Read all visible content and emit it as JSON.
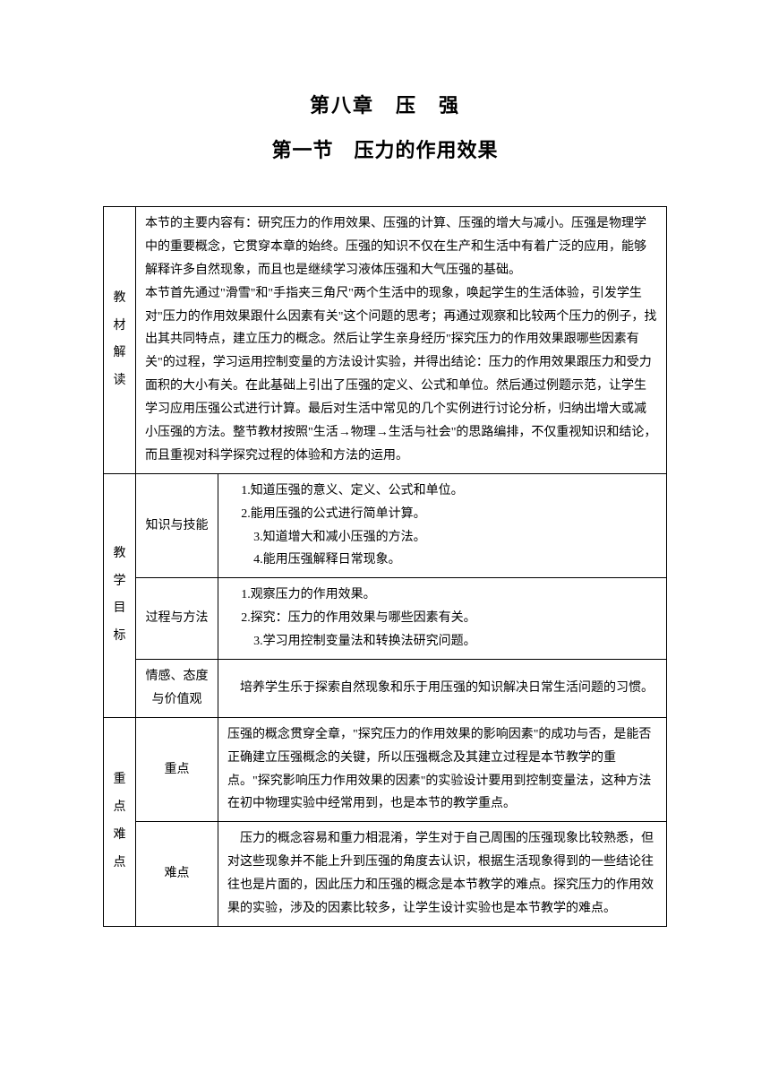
{
  "chapter_title": "第八章　压　强",
  "section_title": "第一节　压力的作用效果",
  "rows": {
    "material": {
      "label": "教\n材\n解\n读",
      "content": "本节的主要内容有：研究压力的作用效果、压强的计算、压强的增大与减小。压强是物理学中的重要概念，它贯穿本章的始终。压强的知识不仅在生产和生活中有着广泛的应用，能够解释许多自然现象，而且也是继续学习液体压强和大气压强的基础。\n本节首先通过\"滑雪\"和\"手指夹三角尺\"两个生活中的现象，唤起学生的生活体验，引发学生对\"压力的作用效果跟什么因素有关\"这个问题的思考；再通过观察和比较两个压力的例子，找出其共同特点，建立压力的概念。然后让学生亲身经历\"探究压力的作用效果跟哪些因素有关\"的过程，学习运用控制变量的方法设计实验，并得出结论：压力的作用效果跟压力和受力面积的大小有关。在此基础上引出了压强的定义、公式和单位。然后通过例题示范，让学生学习应用压强公式进行计算。最后对生活中常见的几个实例进行讨论分析，归纳出增大或减小压强的方法。整节教材按照\"生活→物理→生活与社会\"的思路编排，不仅重视知识和结论，而且重视对科学探究过程的体验和方法的运用。"
    },
    "goals": {
      "label": "教\n学\n目\n标",
      "sub1": {
        "label": "知识与技能",
        "content": "1.知道压强的意义、定义、公式和单位。\n2.能用压强的公式进行简单计算。\n　3.知道增大和减小压强的方法。\n　4.能用压强解释日常现象。"
      },
      "sub2": {
        "label": "过程与方法",
        "content": "1.观察压力的作用效果。\n2.探究：压力的作用效果与哪些因素有关。\n　3.学习用控制变量法和转换法研究问题。"
      },
      "sub3": {
        "label": "情感、态度与价值观",
        "content": "　培养学生乐于探索自然现象和乐于用压强的知识解决日常生活问题的习惯。"
      }
    },
    "keypoints": {
      "label": "重\n点\n难\n点",
      "sub1": {
        "label": "重点",
        "content": "压强的概念贯穿全章，\"探究压力的作用效果的影响因素\"的成功与否，是能否正确建立压强概念的关键，所以压强概念及其建立过程是本节教学的重点。\"探究影响压力作用效果的因素\"的实验设计要用到控制变量法，这种方法在初中物理实验中经常用到，也是本节的教学重点。"
      },
      "sub2": {
        "label": "难点",
        "content": "　压力的概念容易和重力相混淆，学生对于自己周围的压强现象比较熟悉，但对这些现象并不能上升到压强的角度去认识，根据生活现象得到的一些结论往往也是片面的，因此压力和压强的概念是本节教学的难点。探究压力的作用效果的实验，涉及的因素比较多，让学生设计实验也是本节教学的难点。"
      }
    }
  }
}
